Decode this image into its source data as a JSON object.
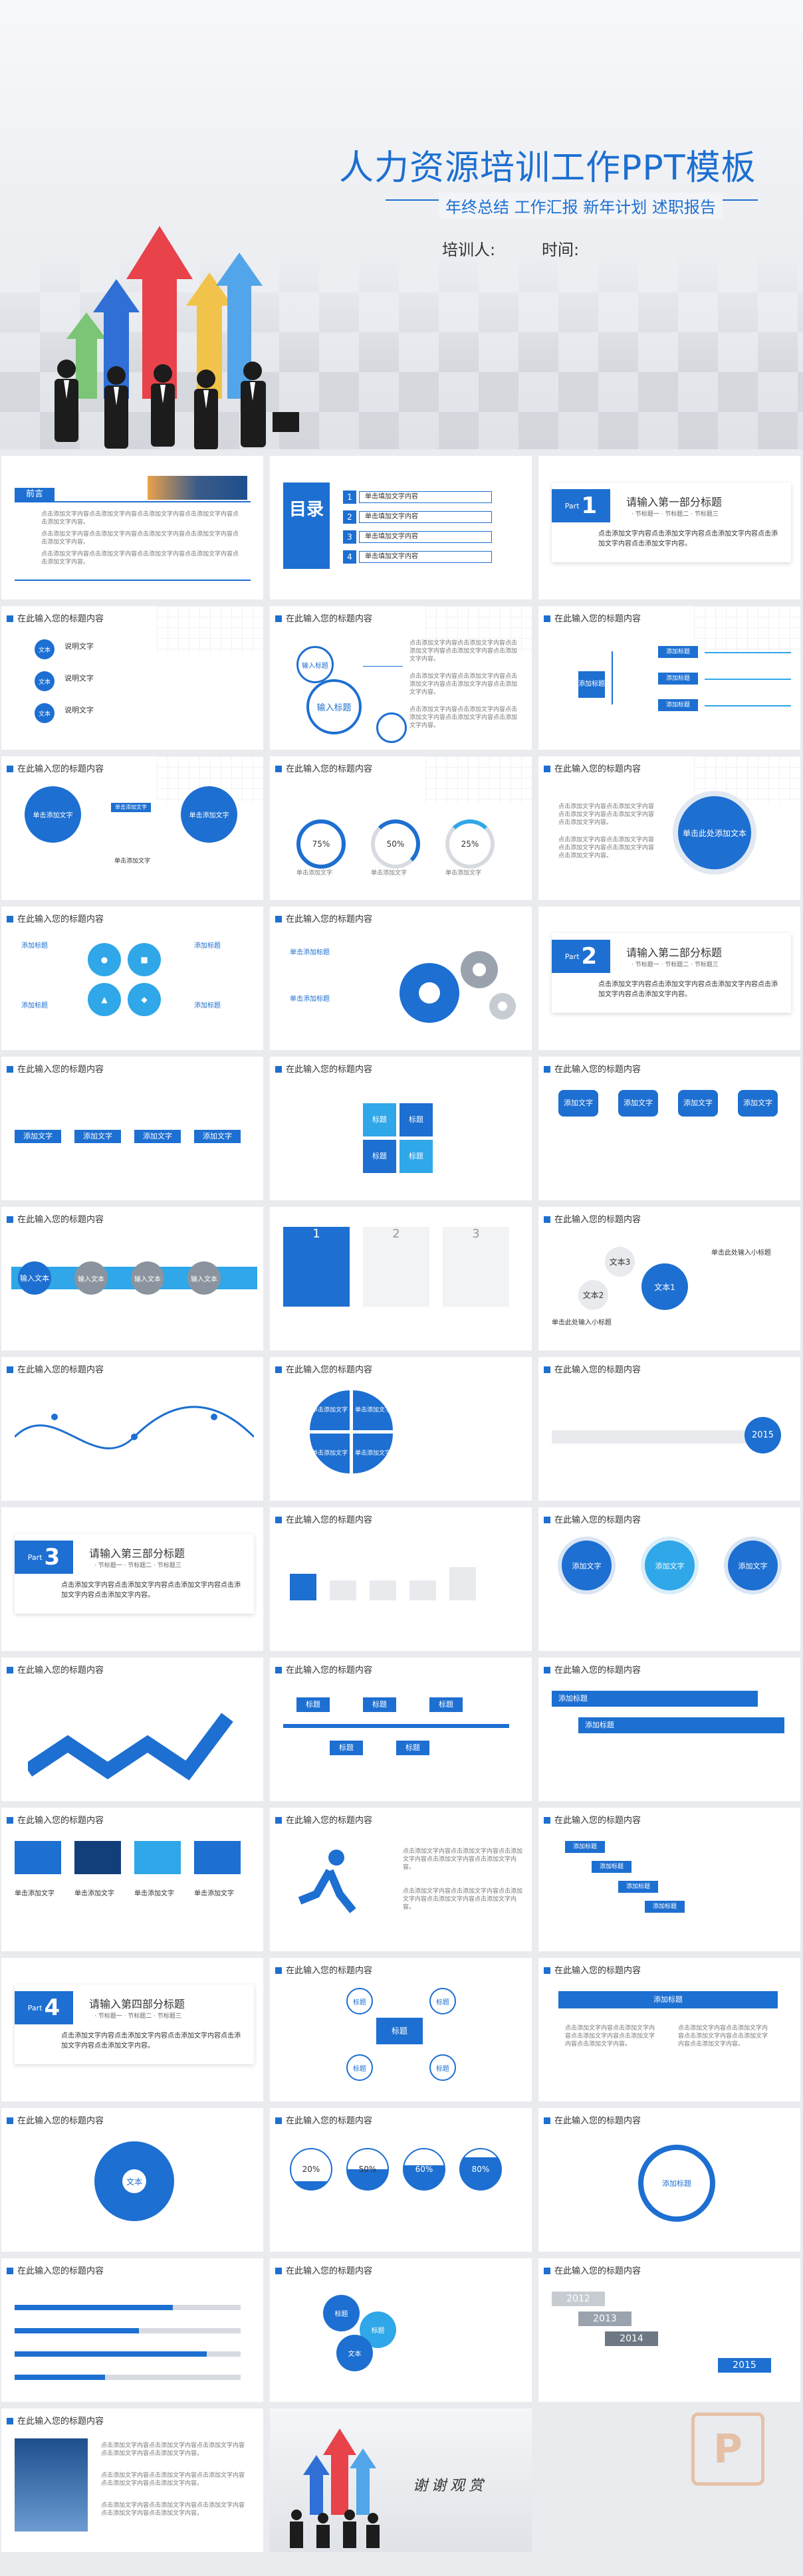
{
  "cover": {
    "title": "人力资源培训工作PPT模板",
    "subtitle": "年终总结  工作汇报  新年计划  述职报告",
    "trainer_label": "培训人:",
    "time_label": "时间:"
  },
  "common": {
    "slide_title": "在此输入您的标题内容",
    "click_add_title": "单击添加标题",
    "click_add_text": "单击添加文字",
    "add_text": "添加文字",
    "add_title": "添加标题",
    "input_title": "输入标题",
    "title_short": "标题",
    "text_short": "文本",
    "input_text": "输入文本",
    "explain_text": "说明文字",
    "preface": "前言",
    "thanks": "谢谢观赏"
  },
  "toc": {
    "label": "目录",
    "items": [
      {
        "num": "1",
        "text": "单击填加文字内容"
      },
      {
        "num": "2",
        "text": "单击填加文字内容"
      },
      {
        "num": "3",
        "text": "单击填加文字内容"
      },
      {
        "num": "4",
        "text": "单击填加文字内容"
      }
    ]
  },
  "parts": [
    {
      "word": "Part",
      "num": "1",
      "title": "请输入第一部分标题",
      "sub": "· 节标题一 · 节标题二 · 节标题三",
      "desc": "点击添加文字内容点击添加文字内容点击添加文字内容点击添加文字内容点击添加文字内容。"
    },
    {
      "word": "Part",
      "num": "2",
      "title": "请输入第二部分标题",
      "sub": "· 节标题一 · 节标题二 · 节标题三",
      "desc": "点击添加文字内容点击添加文字内容点击添加文字内容点击添加文字内容点击添加文字内容。"
    },
    {
      "word": "Part",
      "num": "3",
      "title": "请输入第三部分标题",
      "sub": "· 节标题一 · 节标题二 · 节标题三",
      "desc": "点击添加文字内容点击添加文字内容点击添加文字内容点击添加文字内容点击添加文字内容。"
    },
    {
      "word": "Part",
      "num": "4",
      "title": "请输入第四部分标题",
      "sub": "· 节标题一 · 节标题二 · 节标题三",
      "desc": "点击添加文字内容点击添加文字内容点击添加文字内容点击添加文字内容点击添加文字内容。"
    }
  ],
  "percents": [
    "75%",
    "50%",
    "25%"
  ],
  "percents2": [
    "20%",
    "50%",
    "60%",
    "80%"
  ],
  "years": [
    "2012",
    "2013",
    "2014",
    "2015"
  ],
  "slide3_center": "单击此处添加文本",
  "text1": "文本1",
  "text2": "文本2",
  "text3": "文本3",
  "click_here_title": "单击此处输入小标题",
  "center_label": "文本",
  "brand_colors": {
    "primary": "#1d6fd1",
    "light": "#2fa7e8",
    "gray": "#d7dbe1"
  }
}
